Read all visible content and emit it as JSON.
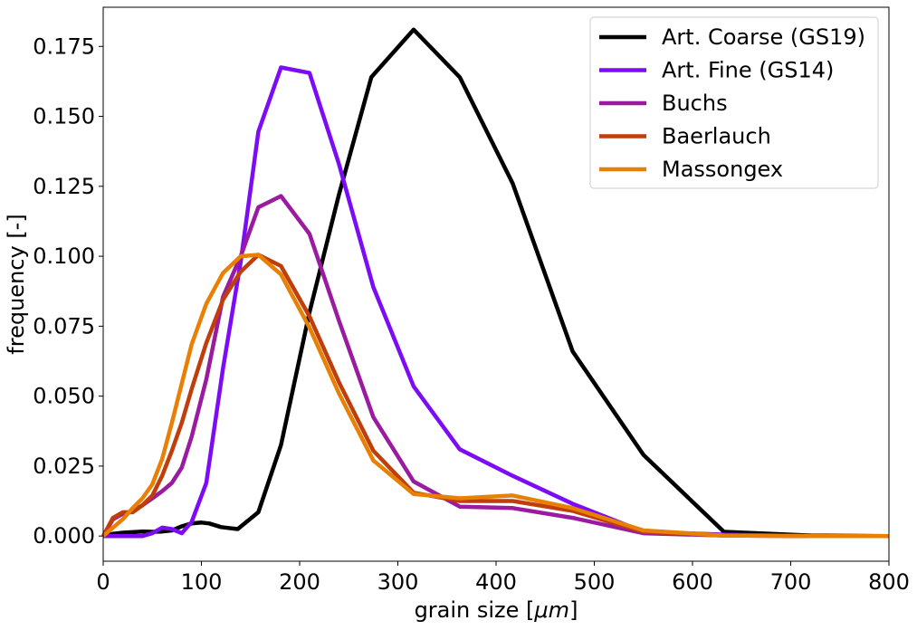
{
  "chart_data": {
    "type": "line",
    "xlabel": "grain size [",
    "xlabel_math": "μm",
    "xlabel_suffix": "]",
    "ylabel": "frequency [-]",
    "xlim": [
      0,
      800
    ],
    "ylim": [
      -0.009,
      0.189
    ],
    "xticks": [
      0,
      100,
      200,
      300,
      400,
      500,
      600,
      700,
      800
    ],
    "yticks": [
      0.0,
      0.025,
      0.05,
      0.075,
      0.1,
      0.125,
      0.15,
      0.175
    ],
    "ytick_labels": [
      "0.000",
      "0.025",
      "0.050",
      "0.075",
      "0.100",
      "0.125",
      "0.150",
      "0.175"
    ],
    "grid": false,
    "legend_position": "top-right",
    "series": [
      {
        "name": "Art. Coarse (GS19)",
        "color": "#000000",
        "x": [
          0,
          10,
          20,
          30,
          40,
          50,
          60,
          70,
          80,
          90,
          100,
          108,
          120,
          137,
          158,
          181,
          210,
          240,
          273,
          316,
          363,
          417,
          478,
          550,
          632,
          720,
          800
        ],
        "y": [
          0.0,
          0.0008,
          0.0012,
          0.0014,
          0.0016,
          0.0015,
          0.0016,
          0.002,
          0.0035,
          0.0045,
          0.0048,
          0.0045,
          0.0032,
          0.0025,
          0.0085,
          0.0325,
          0.08,
          0.122,
          0.164,
          0.181,
          0.164,
          0.126,
          0.066,
          0.029,
          0.0015,
          0.0002,
          0.0
        ]
      },
      {
        "name": "Art. Fine (GS14)",
        "color": "#7b0cf5",
        "x": [
          0,
          10,
          20,
          30,
          40,
          50,
          60,
          70,
          80,
          90,
          105,
          122,
          140,
          158,
          181,
          210,
          240,
          275,
          316,
          363,
          417,
          478,
          550,
          632,
          720,
          800
        ],
        "y": [
          0.0,
          0.0,
          0.0,
          0.0,
          0.0,
          0.001,
          0.003,
          0.0025,
          0.001,
          0.005,
          0.019,
          0.06,
          0.098,
          0.1445,
          0.1675,
          0.1655,
          0.133,
          0.089,
          0.0535,
          0.031,
          0.0215,
          0.0115,
          0.0015,
          0.0005,
          0.0,
          0.0
        ]
      },
      {
        "name": "Buchs",
        "color": "#9a1b9f",
        "x": [
          0,
          10,
          20,
          30,
          40,
          50,
          60,
          70,
          80,
          90,
          105,
          122,
          140,
          158,
          181,
          210,
          240,
          275,
          316,
          363,
          417,
          478,
          550,
          632,
          720,
          800
        ],
        "y": [
          0.0,
          0.006,
          0.008,
          0.009,
          0.011,
          0.0135,
          0.016,
          0.019,
          0.0245,
          0.0355,
          0.056,
          0.0855,
          0.1,
          0.1175,
          0.1215,
          0.108,
          0.077,
          0.0425,
          0.0195,
          0.0105,
          0.01,
          0.0065,
          0.001,
          0.0002,
          0.0,
          0.0
        ]
      },
      {
        "name": "Baerlauch",
        "color": "#c03d0c",
        "x": [
          0,
          10,
          20,
          30,
          40,
          50,
          60,
          70,
          80,
          90,
          105,
          122,
          140,
          158,
          181,
          210,
          240,
          275,
          316,
          363,
          417,
          478,
          550,
          632,
          720,
          800
        ],
        "y": [
          0.0,
          0.0065,
          0.0085,
          0.0085,
          0.011,
          0.0145,
          0.0215,
          0.0305,
          0.0405,
          0.0525,
          0.069,
          0.0845,
          0.0945,
          0.1005,
          0.0965,
          0.0785,
          0.055,
          0.0305,
          0.0155,
          0.0125,
          0.0125,
          0.009,
          0.0015,
          0.0002,
          0.0,
          0.0
        ]
      },
      {
        "name": "Massongex",
        "color": "#e88005",
        "x": [
          0,
          10,
          20,
          30,
          40,
          50,
          60,
          70,
          80,
          90,
          105,
          122,
          140,
          158,
          181,
          210,
          240,
          275,
          316,
          363,
          417,
          478,
          550,
          632,
          720,
          800
        ],
        "y": [
          0.0,
          0.003,
          0.006,
          0.01,
          0.0135,
          0.0185,
          0.0275,
          0.0405,
          0.0545,
          0.0685,
          0.083,
          0.094,
          0.1,
          0.1005,
          0.0935,
          0.0745,
          0.051,
          0.027,
          0.015,
          0.0135,
          0.0145,
          0.01,
          0.002,
          0.0002,
          0.0,
          0.0
        ]
      }
    ]
  }
}
